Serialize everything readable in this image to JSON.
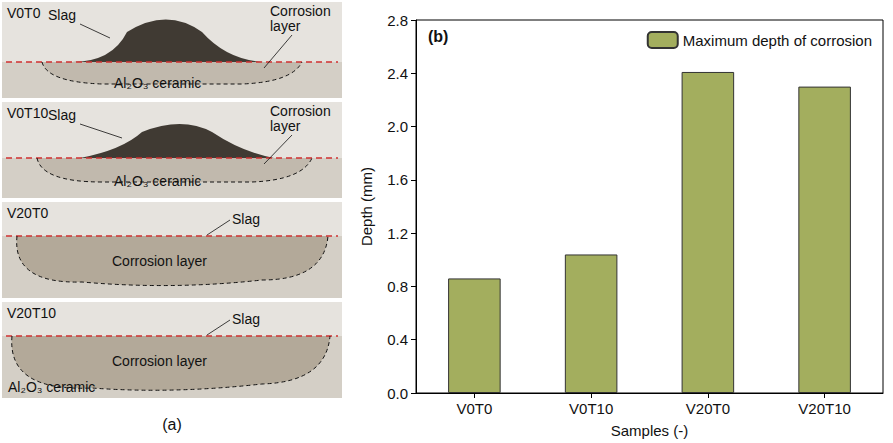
{
  "panel_labels": {
    "a": "(a)",
    "b": "(b)"
  },
  "photo_panel": {
    "samples": [
      {
        "name": "V0T0",
        "labels": [
          "Slag",
          "Corrosion layer",
          "Al₂O₃ ceramic"
        ]
      },
      {
        "name": "V0T10",
        "labels": [
          "Slag",
          "Corrosion layer",
          "Al₂O₃ ceramic"
        ]
      },
      {
        "name": "V20T0",
        "labels": [
          "Slag",
          "Corrosion layer"
        ]
      },
      {
        "name": "V20T10",
        "labels": [
          "Slag",
          "Corrosion layer",
          "Al₂O₃ ceramic"
        ]
      }
    ]
  },
  "chart_data": {
    "type": "bar",
    "x_label": "Samples (-)",
    "y_label": "Depth (mm)",
    "categories": [
      "V0T0",
      "V0T10",
      "V20T0",
      "V20T10"
    ],
    "series": [
      {
        "name": "Maximum depth of corrosion",
        "color": "#a3ae5e",
        "values": [
          0.86,
          1.04,
          2.41,
          2.3
        ]
      }
    ],
    "ylim": [
      0,
      2.8
    ],
    "yticks": [
      {
        "value": 0,
        "label": "0.0"
      },
      0.4,
      0.8,
      1.2,
      1.6,
      {
        "value": 2,
        "label": "2.0"
      },
      2.4,
      2.8
    ],
    "grid": false,
    "legend": "top-right",
    "data_labels": false
  }
}
